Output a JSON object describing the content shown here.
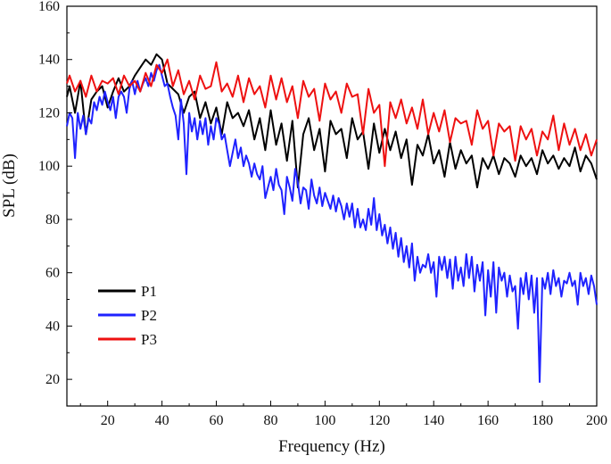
{
  "chart_data": {
    "type": "line",
    "title": "",
    "xlabel": "Frequency (Hz)",
    "ylabel": "SPL (dB)",
    "xlim": [
      5,
      200
    ],
    "ylim": [
      10,
      160
    ],
    "xticks": [
      20,
      40,
      60,
      80,
      100,
      120,
      140,
      160,
      180,
      200
    ],
    "yticks": [
      20,
      40,
      60,
      80,
      100,
      120,
      140,
      160
    ],
    "grid": false,
    "legend_position": "bottom-left",
    "series": [
      {
        "name": "P1",
        "color": "#000000",
        "x": [
          5,
          6,
          8,
          10,
          12,
          14,
          16,
          18,
          20,
          22,
          24,
          26,
          28,
          30,
          32,
          34,
          36,
          38,
          40,
          42,
          44,
          46,
          48,
          50,
          52,
          54,
          56,
          58,
          60,
          62,
          64,
          66,
          68,
          70,
          72,
          74,
          76,
          78,
          80,
          82,
          84,
          86,
          88,
          90,
          92,
          94,
          96,
          98,
          100,
          102,
          104,
          106,
          108,
          110,
          112,
          114,
          116,
          118,
          120,
          122,
          124,
          126,
          128,
          130,
          132,
          134,
          136,
          138,
          140,
          142,
          144,
          146,
          148,
          150,
          152,
          154,
          156,
          158,
          160,
          162,
          164,
          166,
          168,
          170,
          172,
          174,
          176,
          178,
          180,
          182,
          184,
          186,
          188,
          190,
          192,
          194,
          196,
          198,
          200
        ],
        "y": [
          126,
          130,
          120,
          132,
          112,
          125,
          128,
          130,
          122,
          128,
          133,
          128,
          130,
          134,
          137,
          140,
          138,
          142,
          140,
          131,
          129,
          127,
          120,
          126,
          128,
          118,
          124,
          116,
          122,
          112,
          124,
          118,
          120,
          115,
          121,
          110,
          118,
          106,
          121,
          108,
          116,
          102,
          117,
          92,
          112,
          118,
          106,
          114,
          98,
          117,
          112,
          114,
          103,
          118,
          110,
          113,
          99,
          116,
          105,
          114,
          106,
          113,
          103,
          110,
          93,
          108,
          104,
          112,
          101,
          106,
          96,
          109,
          99,
          106,
          101,
          104,
          92,
          103,
          99,
          104,
          97,
          103,
          101,
          96,
          104,
          100,
          103,
          97,
          106,
          101,
          104,
          99,
          103,
          100,
          107,
          98,
          104,
          101,
          95
        ]
      },
      {
        "name": "P2",
        "color": "#1f22ff",
        "x": [
          5,
          6,
          7,
          8,
          9,
          10,
          11,
          12,
          13,
          14,
          15,
          16,
          17,
          18,
          19,
          20,
          21,
          22,
          23,
          24,
          25,
          26,
          27,
          28,
          29,
          30,
          31,
          32,
          33,
          34,
          35,
          36,
          37,
          38,
          39,
          40,
          41,
          42,
          43,
          44,
          45,
          46,
          47,
          48,
          49,
          50,
          51,
          52,
          53,
          54,
          55,
          56,
          57,
          58,
          59,
          60,
          61,
          62,
          63,
          64,
          65,
          66,
          67,
          68,
          69,
          70,
          71,
          72,
          73,
          74,
          75,
          76,
          77,
          78,
          79,
          80,
          81,
          82,
          83,
          84,
          85,
          86,
          87,
          88,
          89,
          90,
          91,
          92,
          93,
          94,
          95,
          96,
          97,
          98,
          99,
          100,
          101,
          102,
          103,
          104,
          105,
          106,
          107,
          108,
          109,
          110,
          111,
          112,
          113,
          114,
          115,
          116,
          117,
          118,
          119,
          120,
          121,
          122,
          123,
          124,
          125,
          126,
          127,
          128,
          129,
          130,
          131,
          132,
          133,
          134,
          135,
          136,
          137,
          138,
          139,
          140,
          141,
          142,
          143,
          144,
          145,
          146,
          147,
          148,
          149,
          150,
          151,
          152,
          153,
          154,
          155,
          156,
          157,
          158,
          159,
          160,
          161,
          162,
          163,
          164,
          165,
          166,
          167,
          168,
          169,
          170,
          171,
          172,
          173,
          174,
          175,
          176,
          177,
          178,
          179,
          180,
          181,
          182,
          183,
          184,
          185,
          186,
          187,
          188,
          189,
          190,
          191,
          192,
          193,
          194,
          195,
          196,
          197,
          198,
          199,
          200
        ],
        "y": [
          115,
          120,
          118,
          103,
          120,
          114,
          119,
          112,
          118,
          116,
          124,
          121,
          126,
          123,
          128,
          124,
          121,
          126,
          118,
          126,
          128,
          126,
          120,
          129,
          132,
          127,
          132,
          128,
          131,
          133,
          130,
          135,
          132,
          136,
          138,
          134,
          130,
          131,
          126,
          122,
          119,
          110,
          125,
          116,
          97,
          120,
          113,
          118,
          110,
          117,
          112,
          118,
          108,
          115,
          110,
          118,
          116,
          110,
          112,
          106,
          100,
          105,
          110,
          103,
          107,
          100,
          104,
          101,
          96,
          101,
          97,
          95,
          100,
          88,
          92,
          96,
          91,
          99,
          93,
          91,
          82,
          96,
          92,
          87,
          99,
          94,
          86,
          92,
          91,
          84,
          95,
          89,
          86,
          92,
          85,
          90,
          87,
          84,
          89,
          83,
          88,
          85,
          80,
          86,
          81,
          86,
          77,
          84,
          77,
          80,
          76,
          84,
          78,
          88,
          76,
          82,
          74,
          78,
          71,
          77,
          69,
          75,
          66,
          73,
          64,
          70,
          62,
          71,
          57,
          66,
          60,
          63,
          62,
          67,
          60,
          64,
          51,
          66,
          61,
          66,
          58,
          65,
          54,
          66,
          57,
          62,
          55,
          67,
          58,
          66,
          53,
          63,
          57,
          64,
          44,
          61,
          51,
          64,
          45,
          62,
          57,
          60,
          51,
          59,
          53,
          55,
          39,
          58,
          52,
          60,
          50,
          59,
          45,
          58,
          19,
          58,
          54,
          60,
          52,
          61,
          55,
          58,
          51,
          57,
          56,
          60,
          55,
          57,
          48,
          60,
          55,
          58,
          52,
          59,
          55,
          48
        ]
      },
      {
        "name": "P3",
        "color": "#ee1111",
        "x": [
          5,
          6,
          8,
          10,
          12,
          14,
          16,
          18,
          20,
          22,
          24,
          26,
          28,
          30,
          32,
          34,
          36,
          38,
          40,
          42,
          44,
          46,
          48,
          50,
          52,
          54,
          56,
          58,
          60,
          62,
          64,
          66,
          68,
          70,
          72,
          74,
          76,
          78,
          80,
          82,
          84,
          86,
          88,
          90,
          92,
          94,
          96,
          98,
          100,
          102,
          104,
          106,
          108,
          110,
          112,
          114,
          116,
          118,
          120,
          122,
          124,
          126,
          128,
          130,
          132,
          134,
          136,
          138,
          140,
          142,
          144,
          146,
          148,
          150,
          152,
          154,
          156,
          158,
          160,
          162,
          164,
          166,
          168,
          170,
          172,
          174,
          176,
          178,
          180,
          182,
          184,
          186,
          188,
          190,
          192,
          194,
          196,
          198,
          200
        ],
        "y": [
          131,
          134,
          128,
          132,
          126,
          134,
          128,
          132,
          131,
          133,
          127,
          134,
          130,
          132,
          128,
          135,
          130,
          138,
          135,
          140,
          130,
          136,
          127,
          132,
          125,
          134,
          129,
          130,
          139,
          128,
          131,
          126,
          134,
          124,
          133,
          127,
          130,
          122,
          134,
          125,
          133,
          124,
          130,
          118,
          132,
          126,
          129,
          117,
          131,
          125,
          128,
          120,
          131,
          126,
          127,
          112,
          129,
          120,
          123,
          100,
          124,
          118,
          125,
          116,
          122,
          114,
          125,
          112,
          120,
          113,
          121,
          109,
          118,
          116,
          117,
          108,
          121,
          114,
          117,
          104,
          116,
          113,
          115,
          102,
          115,
          110,
          114,
          104,
          113,
          110,
          119,
          106,
          116,
          108,
          114,
          106,
          112,
          104,
          110
        ]
      }
    ]
  }
}
